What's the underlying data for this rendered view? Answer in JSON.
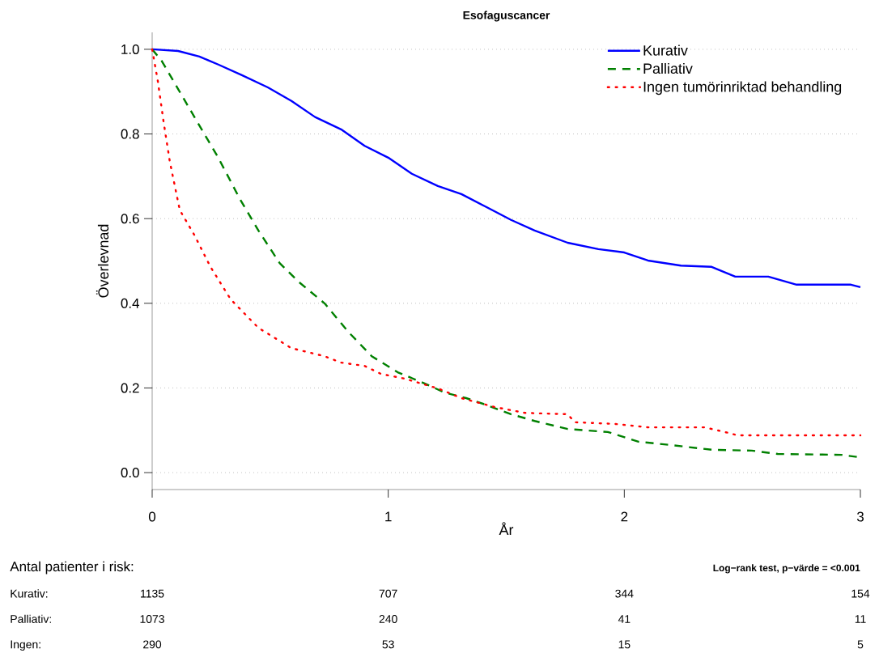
{
  "chart_data": {
    "type": "line",
    "title": "Esofaguscancer",
    "xlabel": "År",
    "ylabel": "Överlevnad",
    "xlim": [
      0,
      3
    ],
    "ylim": [
      -0.04,
      1.04
    ],
    "xticks": [
      0,
      1,
      2,
      3
    ],
    "yticks": [
      {
        "value": 0,
        "label": "0.0"
      },
      {
        "value": 0.2,
        "label": "0.2"
      },
      {
        "value": 0.4,
        "label": "0.4"
      },
      {
        "value": 0.6,
        "label": "0.6"
      },
      {
        "value": 0.8,
        "label": "0.8"
      },
      {
        "value": 1.0,
        "label": "1.0"
      }
    ],
    "grid": "y",
    "legend": "top right",
    "series": [
      {
        "name": "Kurativ",
        "color": "#0000ff",
        "line_style": "solid",
        "x": [
          0,
          0.11,
          0.2,
          0.28,
          0.38,
          0.49,
          0.59,
          0.69,
          0.8,
          0.9,
          1.0,
          1.1,
          1.21,
          1.31,
          1.41,
          1.52,
          1.62,
          1.76,
          1.89,
          2.0,
          2.1,
          2.24,
          2.37,
          2.47,
          2.61,
          2.73,
          2.96,
          3.0
        ],
        "values": [
          1.0,
          0.996,
          0.983,
          0.964,
          0.939,
          0.91,
          0.878,
          0.84,
          0.811,
          0.772,
          0.744,
          0.706,
          0.677,
          0.658,
          0.629,
          0.597,
          0.572,
          0.543,
          0.528,
          0.52,
          0.501,
          0.489,
          0.486,
          0.463,
          0.463,
          0.444,
          0.444,
          0.438
        ]
      },
      {
        "name": "Palliativ",
        "color": "#008000",
        "line_style": "dashed",
        "x": [
          0,
          0.04,
          0.11,
          0.2,
          0.28,
          0.37,
          0.45,
          0.54,
          0.62,
          0.73,
          0.83,
          0.93,
          1.04,
          1.14,
          1.24,
          1.33,
          1.41,
          1.52,
          1.62,
          1.76,
          1.93,
          2.06,
          2.2,
          2.37,
          2.54,
          2.65,
          2.92,
          3.0
        ],
        "values": [
          1.0,
          0.973,
          0.906,
          0.82,
          0.744,
          0.648,
          0.572,
          0.495,
          0.451,
          0.4,
          0.333,
          0.275,
          0.237,
          0.214,
          0.189,
          0.176,
          0.161,
          0.138,
          0.122,
          0.103,
          0.096,
          0.073,
          0.065,
          0.054,
          0.052,
          0.044,
          0.042,
          0.036
        ]
      },
      {
        "name": "Ingen tumörinriktad behandling",
        "color": "#ff0000",
        "line_style": "dotted",
        "x": [
          0,
          0.024,
          0.048,
          0.075,
          0.117,
          0.178,
          0.247,
          0.333,
          0.45,
          0.59,
          0.73,
          0.8,
          0.9,
          0.97,
          1.07,
          1.21,
          1.31,
          1.45,
          1.58,
          1.76,
          1.79,
          1.96,
          2.1,
          2.34,
          2.44,
          2.48,
          3.0
        ],
        "values": [
          1.0,
          0.925,
          0.83,
          0.734,
          0.62,
          0.562,
          0.486,
          0.409,
          0.342,
          0.294,
          0.275,
          0.26,
          0.252,
          0.233,
          0.222,
          0.199,
          0.176,
          0.155,
          0.141,
          0.138,
          0.119,
          0.115,
          0.107,
          0.107,
          0.094,
          0.088,
          0.088
        ]
      }
    ],
    "annotations": [
      "Antal patienter i risk:",
      "Log−rank test, p−värde = <0.001",
      "Kurativ:",
      "1135",
      "707",
      "344",
      "154",
      "Palliativ:",
      "1073",
      "240",
      "41",
      "11",
      "Ingen:",
      "290",
      "53",
      "15",
      "5"
    ]
  }
}
